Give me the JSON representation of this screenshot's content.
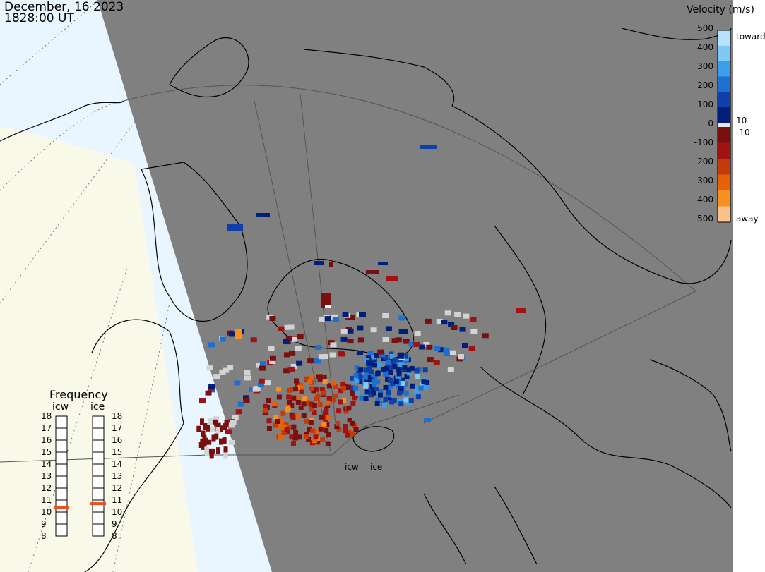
{
  "header": {
    "date": "December, 16 2023",
    "time": "1828:00 UT"
  },
  "colorbar": {
    "title": "Velocity (m/s)",
    "ticks": [
      "500",
      "400",
      "300",
      "200",
      "100",
      "0",
      "-100",
      "-200",
      "-300",
      "-400",
      "-500"
    ],
    "near_zero_labels": [
      "10",
      "-10"
    ],
    "end_labels": {
      "toward": "toward",
      "away": "away"
    },
    "colors": {
      "toward": [
        "#b8e2fb",
        "#7fcaf4",
        "#3b9ee9",
        "#1f6fd0",
        "#0f3fa8",
        "#001f7a"
      ],
      "away": [
        "#7a0f0f",
        "#a31212",
        "#c43a0a",
        "#e5620a",
        "#f7901f",
        "#fcc28a"
      ],
      "zero_band": "#e6e6e6"
    }
  },
  "frequency": {
    "title": "Frequency",
    "radars": [
      {
        "name": "icw",
        "level_mhz": 10.4
      },
      {
        "name": "ice",
        "level_mhz": 10.7
      }
    ],
    "scale": [
      "18",
      "17",
      "16",
      "15",
      "14",
      "13",
      "12",
      "11",
      "10",
      "9",
      "8"
    ],
    "marker_color": "#e8501e"
  },
  "sites": [
    "icw",
    "ice"
  ],
  "map_colors": {
    "night": "#808080",
    "day_ocean": "#e9f6ff",
    "day_land": "#f9f9e9",
    "outline": "#000000",
    "grid": "#555555"
  }
}
